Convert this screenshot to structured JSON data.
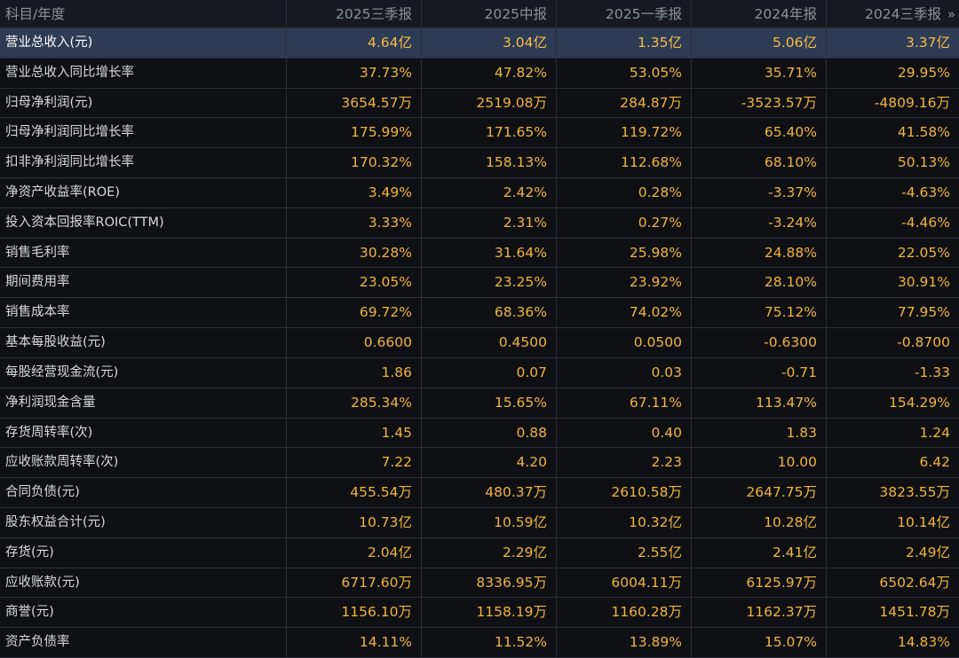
{
  "table": {
    "header": {
      "label": "科目/年度",
      "columns": [
        "2025三季报",
        "2025中报",
        "2025一季报",
        "2024年报",
        "2024三季报"
      ],
      "more_label": "»"
    },
    "rows": [
      {
        "label": "营业总收入(元)",
        "values": [
          "4.64亿",
          "3.04亿",
          "1.35亿",
          "5.06亿",
          "3.37亿"
        ],
        "highlighted": true
      },
      {
        "label": "营业总收入同比增长率",
        "values": [
          "37.73%",
          "47.82%",
          "53.05%",
          "35.71%",
          "29.95%"
        ]
      },
      {
        "label": "归母净利润(元)",
        "values": [
          "3654.57万",
          "2519.08万",
          "284.87万",
          "-3523.57万",
          "-4809.16万"
        ]
      },
      {
        "label": "归母净利润同比增长率",
        "values": [
          "175.99%",
          "171.65%",
          "119.72%",
          "65.40%",
          "41.58%"
        ]
      },
      {
        "label": "扣非净利润同比增长率",
        "values": [
          "170.32%",
          "158.13%",
          "112.68%",
          "68.10%",
          "50.13%"
        ]
      },
      {
        "label": "净资产收益率(ROE)",
        "values": [
          "3.49%",
          "2.42%",
          "0.28%",
          "-3.37%",
          "-4.63%"
        ]
      },
      {
        "label": "投入资本回报率ROIC(TTM)",
        "values": [
          "3.33%",
          "2.31%",
          "0.27%",
          "-3.24%",
          "-4.46%"
        ]
      },
      {
        "label": "销售毛利率",
        "values": [
          "30.28%",
          "31.64%",
          "25.98%",
          "24.88%",
          "22.05%"
        ]
      },
      {
        "label": "期间费用率",
        "values": [
          "23.05%",
          "23.25%",
          "23.92%",
          "28.10%",
          "30.91%"
        ]
      },
      {
        "label": "销售成本率",
        "values": [
          "69.72%",
          "68.36%",
          "74.02%",
          "75.12%",
          "77.95%"
        ]
      },
      {
        "label": "基本每股收益(元)",
        "values": [
          "0.6600",
          "0.4500",
          "0.0500",
          "-0.6300",
          "-0.8700"
        ]
      },
      {
        "label": "每股经营现金流(元)",
        "values": [
          "1.86",
          "0.07",
          "0.03",
          "-0.71",
          "-1.33"
        ]
      },
      {
        "label": "净利润现金含量",
        "values": [
          "285.34%",
          "15.65%",
          "67.11%",
          "113.47%",
          "154.29%"
        ]
      },
      {
        "label": "存货周转率(次)",
        "values": [
          "1.45",
          "0.88",
          "0.40",
          "1.83",
          "1.24"
        ]
      },
      {
        "label": "应收账款周转率(次)",
        "values": [
          "7.22",
          "4.20",
          "2.23",
          "10.00",
          "6.42"
        ]
      },
      {
        "label": "合同负债(元)",
        "values": [
          "455.54万",
          "480.37万",
          "2610.58万",
          "2647.75万",
          "3823.55万"
        ]
      },
      {
        "label": "股东权益合计(元)",
        "values": [
          "10.73亿",
          "10.59亿",
          "10.32亿",
          "10.28亿",
          "10.14亿"
        ]
      },
      {
        "label": "存货(元)",
        "values": [
          "2.04亿",
          "2.29亿",
          "2.55亿",
          "2.41亿",
          "2.49亿"
        ]
      },
      {
        "label": "应收账款(元)",
        "values": [
          "6717.60万",
          "8336.95万",
          "6004.11万",
          "6125.97万",
          "6502.64万"
        ]
      },
      {
        "label": "商誉(元)",
        "values": [
          "1156.10万",
          "1158.19万",
          "1160.28万",
          "1162.37万",
          "1451.78万"
        ]
      },
      {
        "label": "资产负债率",
        "values": [
          "14.11%",
          "11.52%",
          "13.89%",
          "15.07%",
          "14.83%"
        ]
      }
    ]
  },
  "colors": {
    "background": "#000000",
    "header_bg": "#16191f",
    "row_bg": "#0f1014",
    "highlight_bg": "#2e3b55",
    "value_text": "#f0b43c",
    "label_text": "#d7d9de",
    "header_text": "#8b909a"
  }
}
